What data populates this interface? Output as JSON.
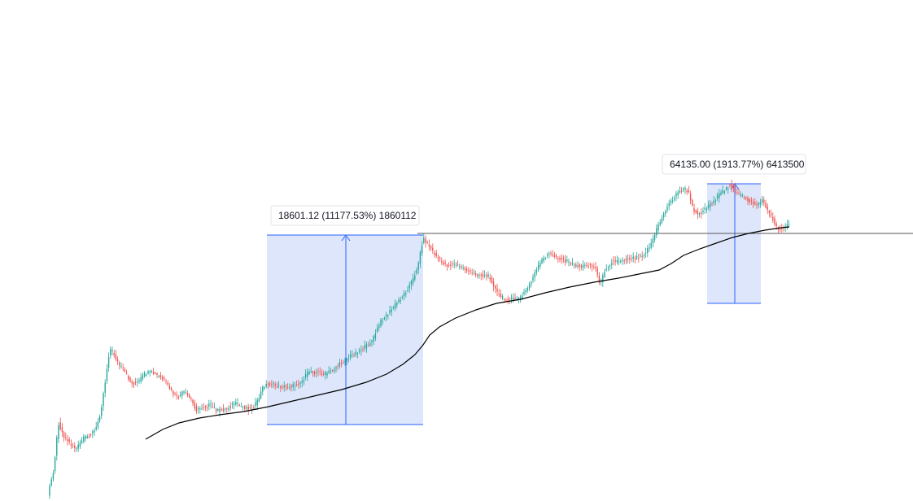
{
  "colors": {
    "up": "#26a69a",
    "down": "#ef5350",
    "wick": "#555555",
    "ma_line": "#000000",
    "horizontal_line": "#555555",
    "measure_fill": "#dde6fb",
    "measure_stroke": "#2962ff"
  },
  "chart_data": {
    "type": "candlestick",
    "series": [
      {
        "name": "",
        "kind": "candles"
      },
      {
        "name": "",
        "kind": "moving-average"
      }
    ],
    "measures": [
      {
        "label": "18601.12 (11177.53%) 1860112",
        "from": {
          "bar": 0.2,
          "price": 0.02
        },
        "to": {
          "bar": 0.4,
          "price": 0.62
        }
      },
      {
        "label": "64135.00 (1913.77%) 6413500",
        "from": {
          "bar": 0.8,
          "price": 0.55
        },
        "to": {
          "bar": 0.85,
          "price": 0.82
        }
      }
    ],
    "horizontal_line": {
      "price": 0.62
    }
  }
}
